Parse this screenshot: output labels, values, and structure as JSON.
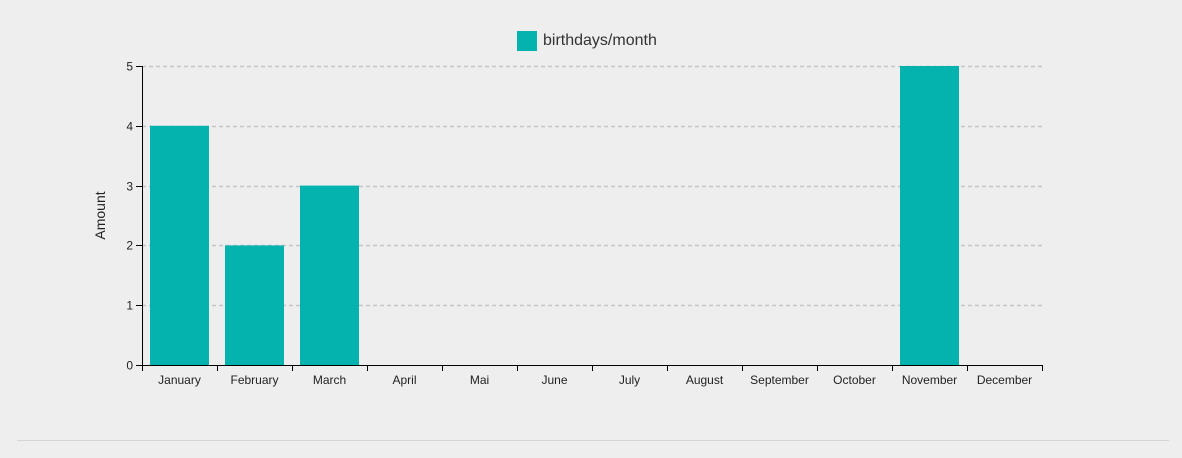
{
  "chart_data": {
    "type": "bar",
    "categories": [
      "January",
      "February",
      "March",
      "April",
      "Mai",
      "June",
      "July",
      "August",
      "September",
      "October",
      "November",
      "December"
    ],
    "series": [
      {
        "name": "birthdays/month",
        "values": [
          4,
          2,
          3,
          0,
          0,
          0,
          0,
          0,
          0,
          0,
          5,
          0
        ],
        "color": "#04b2ae"
      }
    ],
    "ylabel": "Amount",
    "xlabel": "",
    "ylim": [
      0,
      5
    ],
    "yticks": [
      0,
      1,
      2,
      3,
      4,
      5
    ],
    "grid": "horizontal dashed",
    "legend_position": "top-center"
  }
}
